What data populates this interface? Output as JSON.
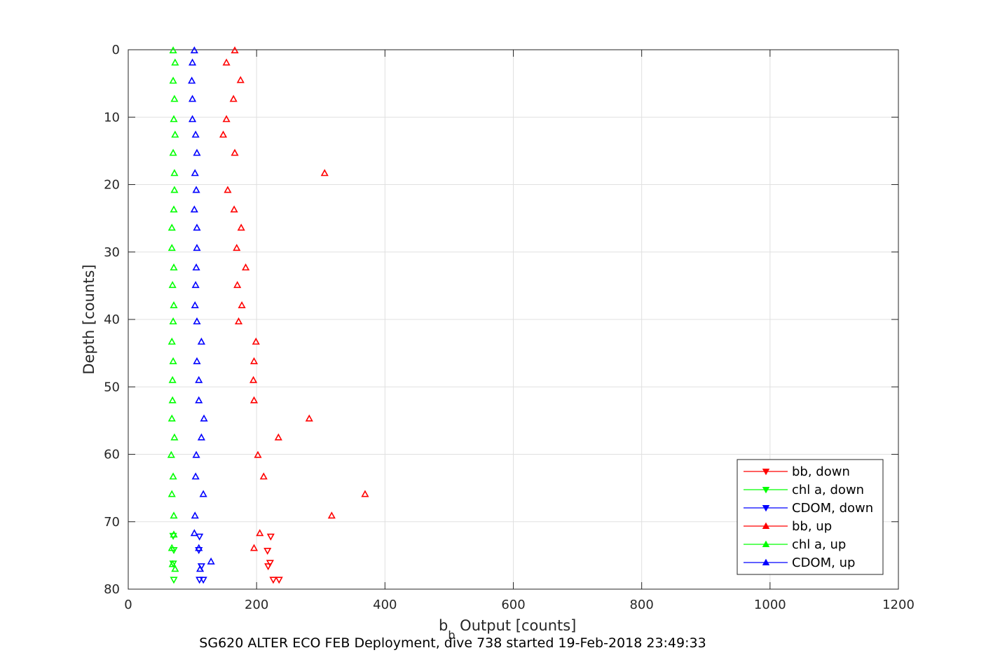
{
  "chart_data": {
    "type": "scatter",
    "xlabel_main": "b",
    "xlabel_sub": "b",
    "xlabel_rest": " Output [counts]",
    "ylabel": "Depth [counts]",
    "caption": "SG620 ALTER ECO FEB Deployment, dive 738 started 19-Feb-2018 23:49:33",
    "xlim": [
      0,
      1200
    ],
    "ylim": [
      0,
      80
    ],
    "y_reversed": true,
    "grid": true,
    "legend_position": "bottom-right",
    "xticks": [
      0,
      200,
      400,
      600,
      800,
      1000,
      1200
    ],
    "yticks": [
      0,
      10,
      20,
      30,
      40,
      50,
      60,
      70,
      80
    ],
    "series": [
      {
        "name": "bb, down",
        "color": "#ff0000",
        "marker": "triangle-down",
        "points": [
          [
            222,
            72.2
          ],
          [
            217,
            74.3
          ],
          [
            221,
            76.1
          ],
          [
            218,
            76.6
          ],
          [
            226,
            78.6
          ],
          [
            235,
            78.6
          ]
        ]
      },
      {
        "name": "chl a, down",
        "color": "#00ff00",
        "marker": "triangle-down",
        "points": [
          [
            70,
            72.1
          ],
          [
            71,
            74.2
          ],
          [
            70,
            76.2
          ],
          [
            71,
            78.6
          ]
        ]
      },
      {
        "name": "CDOM, down",
        "color": "#0000ff",
        "marker": "triangle-down",
        "points": [
          [
            111,
            72.2
          ],
          [
            110,
            74.2
          ],
          [
            114,
            76.6
          ],
          [
            111,
            78.6
          ],
          [
            117,
            78.6
          ]
        ]
      },
      {
        "name": "bb, up",
        "color": "#ff0000",
        "marker": "triangle-up",
        "points": [
          [
            166,
            0.1
          ],
          [
            153,
            1.9
          ],
          [
            175,
            4.5
          ],
          [
            164,
            7.3
          ],
          [
            153,
            10.3
          ],
          [
            148,
            12.6
          ],
          [
            166,
            15.3
          ],
          [
            306,
            18.3
          ],
          [
            155,
            20.8
          ],
          [
            165,
            23.7
          ],
          [
            176,
            26.4
          ],
          [
            169,
            29.4
          ],
          [
            183,
            32.3
          ],
          [
            170,
            34.9
          ],
          [
            177,
            37.9
          ],
          [
            172,
            40.3
          ],
          [
            199,
            43.3
          ],
          [
            196,
            46.2
          ],
          [
            195,
            49.0
          ],
          [
            196,
            52.0
          ],
          [
            282,
            54.7
          ],
          [
            234,
            57.5
          ],
          [
            202,
            60.1
          ],
          [
            211,
            63.3
          ],
          [
            369,
            65.9
          ],
          [
            317,
            69.1
          ],
          [
            205,
            71.7
          ],
          [
            196,
            73.9
          ]
        ]
      },
      {
        "name": "chl a, up",
        "color": "#00ff00",
        "marker": "triangle-up",
        "points": [
          [
            70,
            0.1
          ],
          [
            73,
            1.9
          ],
          [
            70,
            4.6
          ],
          [
            72,
            7.3
          ],
          [
            71,
            10.3
          ],
          [
            73,
            12.6
          ],
          [
            70,
            15.3
          ],
          [
            72,
            18.3
          ],
          [
            72,
            20.8
          ],
          [
            71,
            23.7
          ],
          [
            68,
            26.4
          ],
          [
            68,
            29.4
          ],
          [
            71,
            32.3
          ],
          [
            69,
            34.9
          ],
          [
            71,
            37.9
          ],
          [
            70,
            40.3
          ],
          [
            68,
            43.3
          ],
          [
            70,
            46.2
          ],
          [
            69,
            49.0
          ],
          [
            69,
            52.0
          ],
          [
            68,
            54.7
          ],
          [
            72,
            57.5
          ],
          [
            67,
            60.1
          ],
          [
            70,
            63.3
          ],
          [
            68,
            65.9
          ],
          [
            71,
            69.1
          ],
          [
            71,
            71.9
          ],
          [
            68,
            73.9
          ],
          [
            69,
            76.3
          ],
          [
            73,
            77.0
          ]
        ]
      },
      {
        "name": "CDOM, up",
        "color": "#0000ff",
        "marker": "triangle-up",
        "points": [
          [
            103,
            0.1
          ],
          [
            100,
            1.9
          ],
          [
            99,
            4.6
          ],
          [
            100,
            7.3
          ],
          [
            100,
            10.3
          ],
          [
            105,
            12.6
          ],
          [
            107,
            15.3
          ],
          [
            104,
            18.3
          ],
          [
            106,
            20.8
          ],
          [
            103,
            23.7
          ],
          [
            107,
            26.4
          ],
          [
            107,
            29.4
          ],
          [
            106,
            32.3
          ],
          [
            105,
            34.9
          ],
          [
            104,
            37.9
          ],
          [
            107,
            40.3
          ],
          [
            114,
            43.3
          ],
          [
            107,
            46.2
          ],
          [
            110,
            49.0
          ],
          [
            110,
            52.0
          ],
          [
            118,
            54.7
          ],
          [
            114,
            57.5
          ],
          [
            106,
            60.1
          ],
          [
            105,
            63.3
          ],
          [
            117,
            65.9
          ],
          [
            104,
            69.1
          ],
          [
            103,
            71.7
          ],
          [
            110,
            73.9
          ],
          [
            129,
            75.9
          ],
          [
            112,
            77.0
          ]
        ]
      }
    ]
  }
}
